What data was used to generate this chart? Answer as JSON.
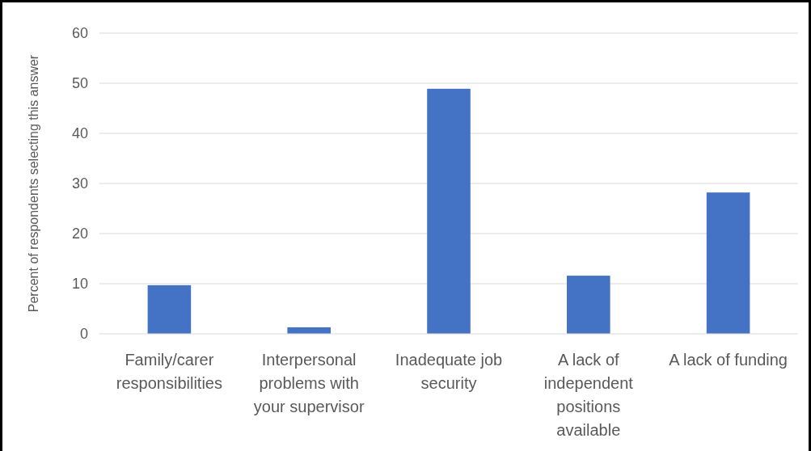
{
  "chart_data": {
    "type": "bar",
    "ylabel": "Percent of respondents selecting this answer",
    "categories": [
      "Family/carer responsibilities",
      "Interpersonal problems with your supervisor",
      "Inadequate job security",
      "A lack of independent positions available",
      "A lack of funding"
    ],
    "values": [
      9.7,
      1.3,
      48.9,
      11.6,
      28.2
    ],
    "color": "#4472c4",
    "ylim": [
      0,
      60
    ],
    "yticks": [
      0,
      10,
      20,
      30,
      40,
      50,
      60
    ],
    "grid": "y"
  }
}
